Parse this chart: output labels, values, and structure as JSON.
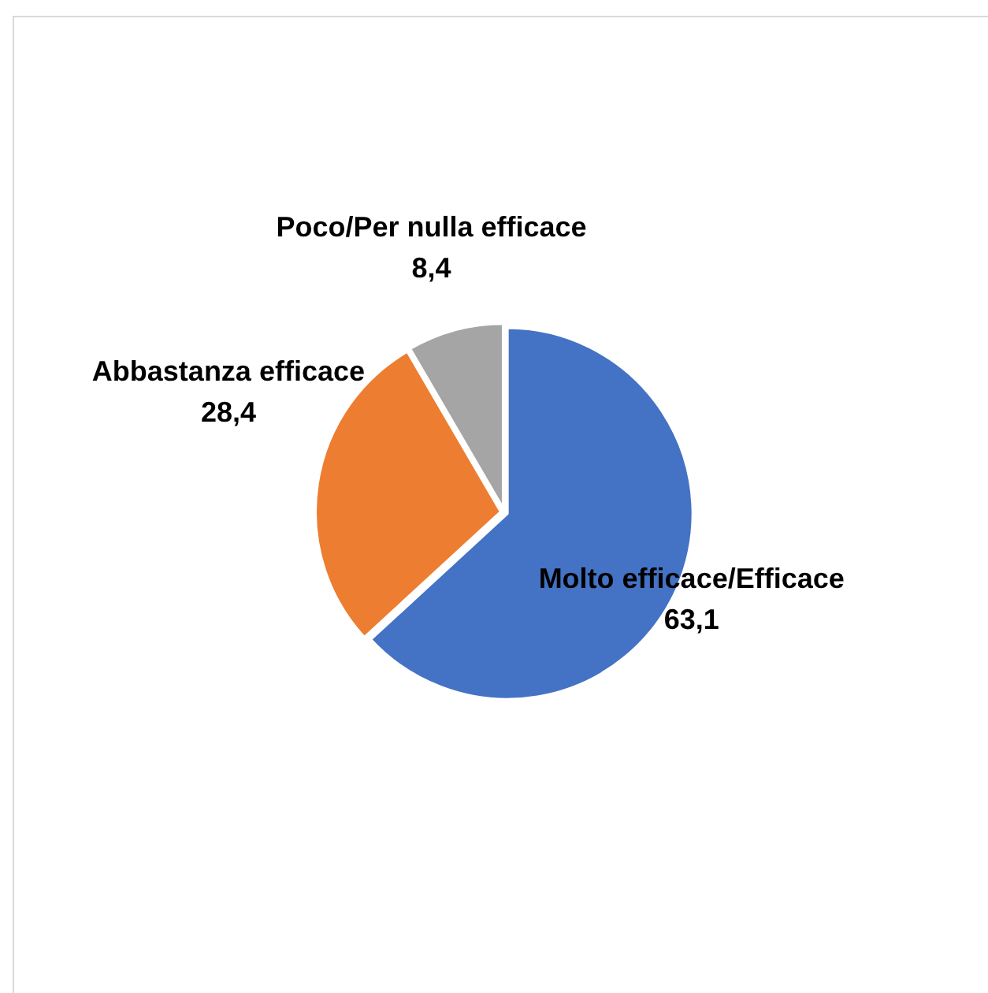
{
  "chart_data": {
    "type": "pie",
    "categories": [
      "Molto efficace/Efficace",
      "Abbastanza efficace",
      "Poco/Per nulla efficace"
    ],
    "values": [
      63.1,
      28.4,
      8.4
    ],
    "value_labels": [
      "63,1",
      "28,4",
      "8,4"
    ],
    "colors": [
      "#4472c4",
      "#ed7d31",
      "#a5a5a5"
    ]
  }
}
